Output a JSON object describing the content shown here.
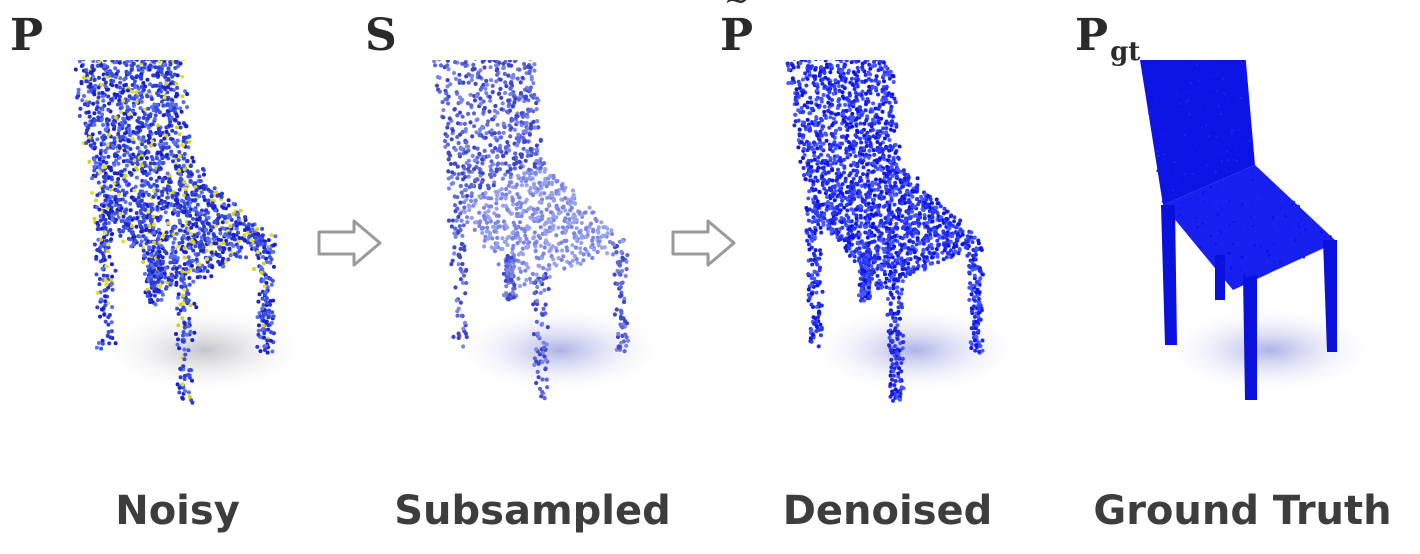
{
  "panels": [
    {
      "id": "noisy",
      "math_base": "P",
      "math_accent": "",
      "math_sub": "",
      "caption": "Noisy",
      "colors": [
        "#1b23c8",
        "#2a3ad6",
        "#3b4fe0",
        "#5a6ef0",
        "#d8d21f",
        "#e6dc3a"
      ]
    },
    {
      "id": "subsampled",
      "math_base": "S",
      "math_accent": "^",
      "math_sub": "",
      "caption": "Subsampled",
      "colors": [
        "#3d47c8",
        "#5c66d8",
        "#7a86e6",
        "#9aa2ee"
      ]
    },
    {
      "id": "denoised",
      "math_base": "P",
      "math_accent": "~",
      "math_sub": "",
      "caption": "Denoised",
      "colors": [
        "#1018e0",
        "#1f2be8",
        "#2f3df2",
        "#4a58ff"
      ]
    },
    {
      "id": "ground-truth",
      "math_base": "P",
      "math_accent": "",
      "math_sub": "gt",
      "caption": "Ground Truth",
      "colors": [
        "#0a10e6",
        "#1218ee",
        "#1a22f4"
      ]
    }
  ],
  "arrow_color": "#9a9a9a"
}
